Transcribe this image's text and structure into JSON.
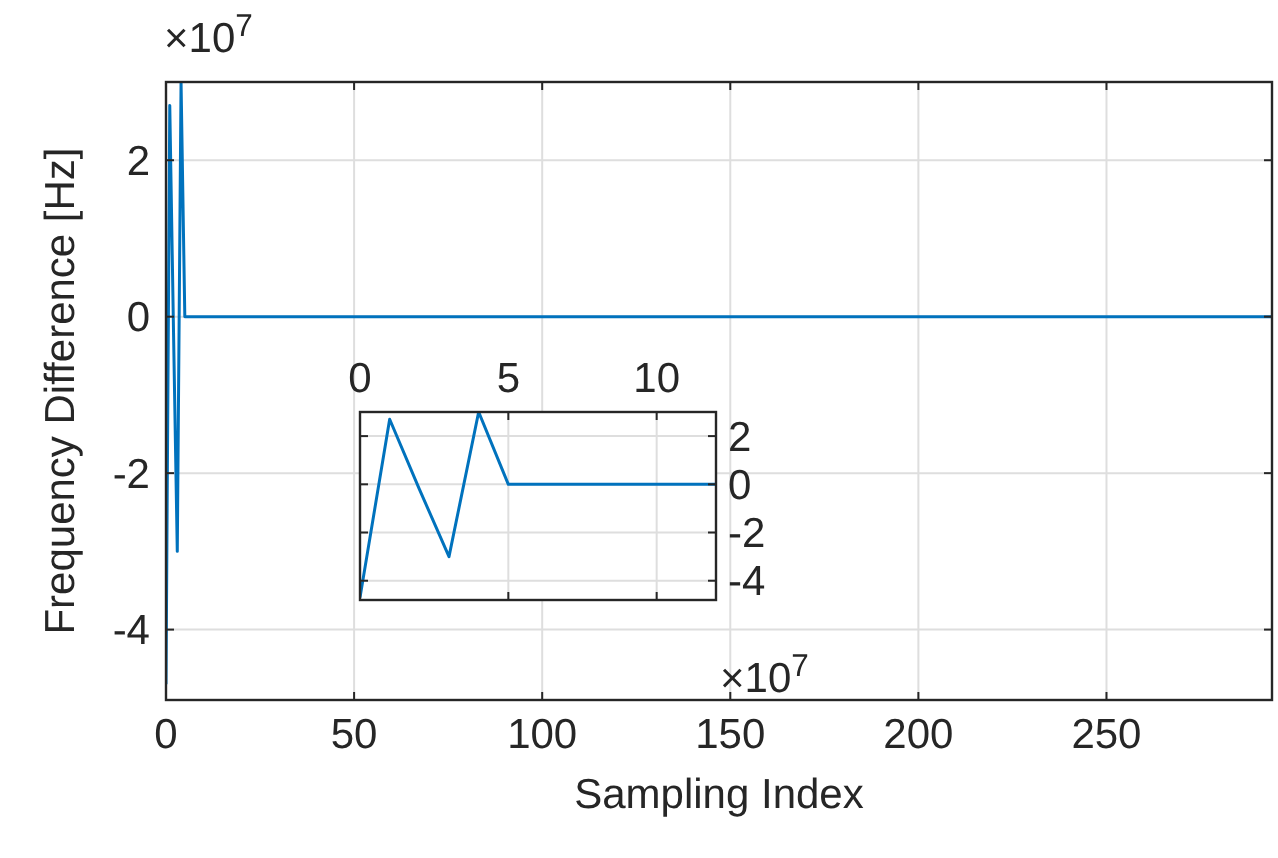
{
  "chart_data": [
    {
      "type": "line",
      "xlabel": "Sampling Index",
      "ylabel": "Frequency Difference [Hz]",
      "annotations": [
        "×10$^{7}$"
      ],
      "xlim": [
        0,
        294
      ],
      "xticks": [
        0,
        50,
        100,
        150,
        200,
        250
      ],
      "ylim": [
        -4.9,
        3
      ],
      "yticks": [
        -4,
        -2,
        0,
        2
      ],
      "grid": true,
      "series": [
        {
          "color": "#0072bd",
          "x": [
            0,
            1,
            2,
            3,
            4,
            5,
            294
          ],
          "values": [
            -4.7,
            2.7,
            -0.2,
            -3.0,
            3.0,
            0,
            0
          ]
        }
      ]
    },
    {
      "type": "line",
      "annotations": [
        "×10$^{7}$"
      ],
      "xlim": [
        0,
        12
      ],
      "xticks": [
        0,
        5,
        10
      ],
      "ylim": [
        -4.8,
        3
      ],
      "yticks": [
        -4,
        -2,
        0,
        2
      ],
      "grid": true,
      "series": [
        {
          "color": "#0072bd",
          "x": [
            0,
            1,
            2,
            3,
            4,
            5,
            12
          ],
          "values": [
            -4.7,
            2.7,
            -0.2,
            -3.0,
            3.0,
            0,
            0
          ]
        }
      ]
    }
  ]
}
